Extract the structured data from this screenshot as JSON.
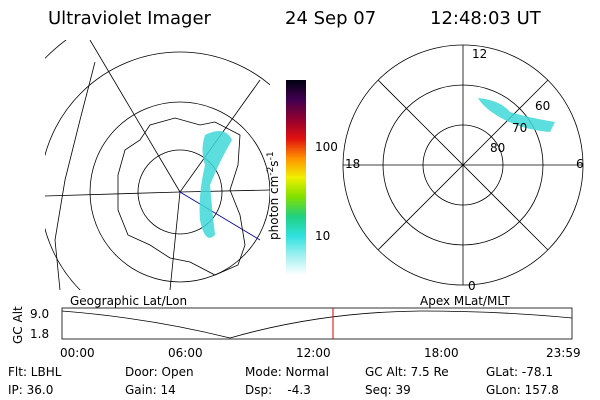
{
  "header": {
    "instrument": "Ultraviolet Imager",
    "date": "24 Sep 07",
    "time": "12:48:03 UT"
  },
  "colorbar": {
    "label_base": "photon cm",
    "label_exp1": "-2",
    "label_mid": "s",
    "label_exp2": "-1",
    "ticks": [
      "100",
      "10"
    ]
  },
  "polar": {
    "mlt_labels": [
      "12",
      "18",
      "6",
      "0"
    ],
    "mlat_labels": [
      "60",
      "70",
      "80"
    ]
  },
  "timeline": {
    "left_title": "Geographic Lat/Lon",
    "right_title": "Apex MLat/MLT",
    "axis_label": "GC Alt",
    "yticks": [
      "9.0",
      "1.8"
    ],
    "xticks": [
      "00:00",
      "06:00",
      "12:00",
      "18:00",
      "23:59"
    ]
  },
  "info": {
    "rows": [
      [
        "Flt: LBHL",
        "Door: Open",
        "Mode: Normal",
        "GC Alt: 7.5 Re",
        "GLat: -78.1"
      ],
      [
        "IP: 36.0",
        "Gain: 14",
        "Dsp:    -4.3",
        "Seq: 39",
        "GLon: 157.8"
      ]
    ]
  }
}
